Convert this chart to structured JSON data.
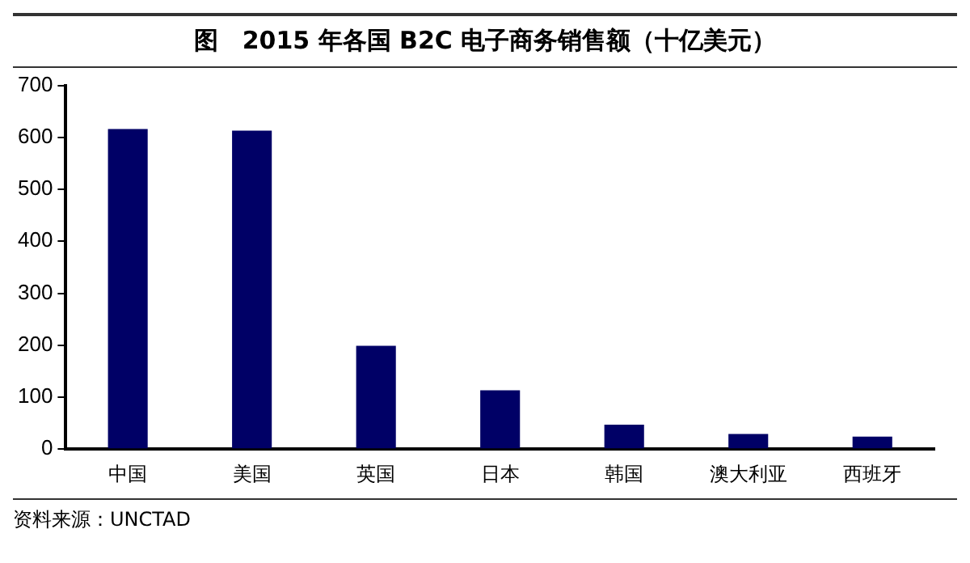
{
  "chart_data": {
    "type": "bar",
    "title": "图　2015 年各国 B2C 电子商务销售额（十亿美元）",
    "categories": [
      "中国",
      "美国",
      "英国",
      "日本",
      "韩国",
      "澳大利亚",
      "西班牙"
    ],
    "values": [
      616,
      613,
      199,
      113,
      47,
      29,
      24
    ],
    "color": "#000066",
    "ylim": [
      0,
      700
    ],
    "yticks": [
      0,
      100,
      200,
      300,
      400,
      500,
      600,
      700
    ],
    "grid": false,
    "legend": false,
    "annotations": [
      "资料来源：UNCTAD"
    ]
  }
}
